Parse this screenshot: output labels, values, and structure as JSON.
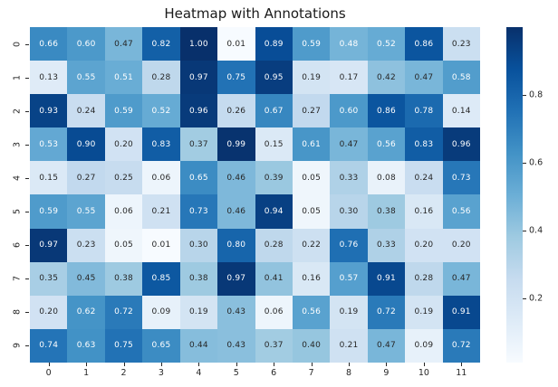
{
  "title": "Heatmap with Annotations",
  "chart_data": {
    "type": "heatmap",
    "title": "Heatmap with Annotations",
    "colormap": "Blues",
    "colormap_stops": [
      "#f7fbff",
      "#deebf7",
      "#c6dbef",
      "#9ecae1",
      "#6baed6",
      "#4292c6",
      "#2171b5",
      "#08519c",
      "#08306b"
    ],
    "vmin": 0.01,
    "vmax": 1.0,
    "x_tick_labels": [
      "0",
      "1",
      "2",
      "3",
      "4",
      "5",
      "6",
      "7",
      "8",
      "9",
      "10",
      "11"
    ],
    "y_tick_labels": [
      "0",
      "1",
      "2",
      "3",
      "4",
      "5",
      "6",
      "7",
      "8",
      "9"
    ],
    "values": [
      [
        0.66,
        0.6,
        0.47,
        0.82,
        1.0,
        0.01,
        0.89,
        0.59,
        0.48,
        0.52,
        0.86,
        0.23
      ],
      [
        0.13,
        0.55,
        0.51,
        0.28,
        0.97,
        0.75,
        0.95,
        0.19,
        0.17,
        0.42,
        0.47,
        0.58
      ],
      [
        0.93,
        0.24,
        0.59,
        0.52,
        0.96,
        0.26,
        0.67,
        0.27,
        0.6,
        0.86,
        0.78,
        0.14
      ],
      [
        0.53,
        0.9,
        0.2,
        0.83,
        0.37,
        0.99,
        0.15,
        0.61,
        0.47,
        0.56,
        0.83,
        0.96
      ],
      [
        0.15,
        0.27,
        0.25,
        0.06,
        0.65,
        0.46,
        0.39,
        0.05,
        0.33,
        0.08,
        0.24,
        0.73
      ],
      [
        0.59,
        0.55,
        0.06,
        0.21,
        0.73,
        0.46,
        0.94,
        0.05,
        0.3,
        0.38,
        0.16,
        0.56
      ],
      [
        0.97,
        0.23,
        0.05,
        0.01,
        0.3,
        0.8,
        0.28,
        0.22,
        0.76,
        0.33,
        0.2,
        0.2
      ],
      [
        0.35,
        0.45,
        0.38,
        0.85,
        0.38,
        0.97,
        0.41,
        0.16,
        0.57,
        0.91,
        0.28,
        0.47
      ],
      [
        0.2,
        0.62,
        0.72,
        0.09,
        0.19,
        0.43,
        0.06,
        0.56,
        0.19,
        0.72,
        0.19,
        0.91
      ],
      [
        0.74,
        0.63,
        0.75,
        0.65,
        0.44,
        0.43,
        0.37,
        0.4,
        0.21,
        0.47,
        0.09,
        0.72
      ]
    ],
    "value_decimals": 2,
    "colorbar_tick_labels": [
      "0.2",
      "0.4",
      "0.6",
      "0.8"
    ],
    "colorbar_tick_values": [
      0.2,
      0.4,
      0.6,
      0.8
    ],
    "annotation_color_dark_text": "#262626",
    "annotation_color_light_text": "#ffffff",
    "axis_text_color": "#262626",
    "background_color": "#ffffff",
    "grid": "off",
    "legend_position": "right-colorbar"
  }
}
